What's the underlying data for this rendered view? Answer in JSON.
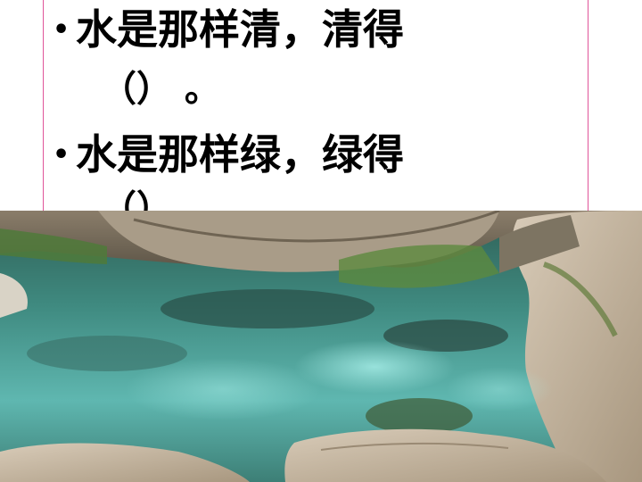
{
  "slide": {
    "bullet_symbol": "•",
    "items": [
      {
        "sentence": "水是那样清，清得",
        "blank": "（）  。"
      },
      {
        "sentence": "水是那样绿，绿得",
        "blank": "（）"
      }
    ]
  },
  "photo": {
    "subject": "clear-green-pool-with-rocks",
    "colors": {
      "water_deep": "#2e6d64",
      "water_light": "#5fb7b0",
      "rock": "#c9b9a6",
      "moss": "#4f7a3a"
    }
  }
}
